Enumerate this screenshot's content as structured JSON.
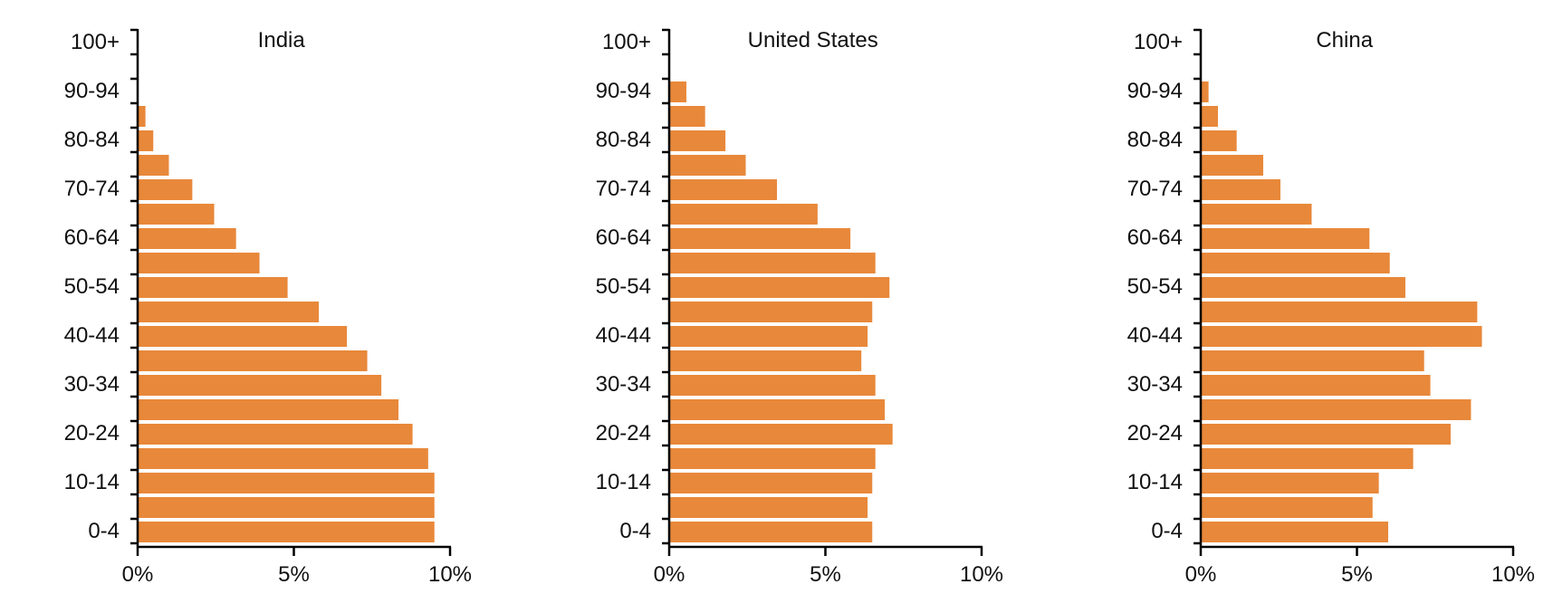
{
  "chart_data": [
    {
      "type": "bar",
      "orientation": "horizontal",
      "title": "India",
      "categories": [
        "0-4",
        "5-9",
        "10-14",
        "15-19",
        "20-24",
        "25-29",
        "30-34",
        "35-39",
        "40-44",
        "45-49",
        "50-54",
        "55-59",
        "60-64",
        "65-69",
        "70-74",
        "75-79",
        "80-84",
        "85-89",
        "90-94",
        "95-99",
        "100+"
      ],
      "values": [
        9.5,
        9.5,
        9.5,
        9.3,
        8.8,
        8.35,
        7.8,
        7.35,
        6.7,
        5.8,
        4.8,
        3.9,
        3.15,
        2.45,
        1.75,
        1.0,
        0.5,
        0.25,
        0.0,
        0.0,
        0.0
      ],
      "y_tick_labels": [
        "0-4",
        "10-14",
        "20-24",
        "30-34",
        "40-44",
        "50-54",
        "60-64",
        "70-74",
        "80-84",
        "90-94",
        "100+"
      ],
      "x_tick_labels": [
        "0%",
        "5%",
        "10%"
      ],
      "xlim": [
        0,
        10
      ],
      "color": "#E8883A",
      "grid": false
    },
    {
      "type": "bar",
      "orientation": "horizontal",
      "title": "United States",
      "categories": [
        "0-4",
        "5-9",
        "10-14",
        "15-19",
        "20-24",
        "25-29",
        "30-34",
        "35-39",
        "40-44",
        "45-49",
        "50-54",
        "55-59",
        "60-64",
        "65-69",
        "70-74",
        "75-79",
        "80-84",
        "85-89",
        "90-94",
        "95-99",
        "100+"
      ],
      "values": [
        6.5,
        6.35,
        6.5,
        6.6,
        7.15,
        6.9,
        6.6,
        6.15,
        6.35,
        6.5,
        7.05,
        6.6,
        5.8,
        4.75,
        3.45,
        2.45,
        1.8,
        1.15,
        0.55,
        0.0,
        0.0
      ],
      "y_tick_labels": [
        "0-4",
        "10-14",
        "20-24",
        "30-34",
        "40-44",
        "50-54",
        "60-64",
        "70-74",
        "80-84",
        "90-94",
        "100+"
      ],
      "x_tick_labels": [
        "0%",
        "5%",
        "10%"
      ],
      "xlim": [
        0,
        10
      ],
      "color": "#E8883A",
      "grid": false
    },
    {
      "type": "bar",
      "orientation": "horizontal",
      "title": "China",
      "categories": [
        "0-4",
        "5-9",
        "10-14",
        "15-19",
        "20-24",
        "25-29",
        "30-34",
        "35-39",
        "40-44",
        "45-49",
        "50-54",
        "55-59",
        "60-64",
        "65-69",
        "70-74",
        "75-79",
        "80-84",
        "85-89",
        "90-94",
        "95-99",
        "100+"
      ],
      "values": [
        6.0,
        5.5,
        5.7,
        6.8,
        8.0,
        8.65,
        7.35,
        7.15,
        9.0,
        8.85,
        6.55,
        6.05,
        5.4,
        3.55,
        2.55,
        2.0,
        1.15,
        0.55,
        0.25,
        0.0,
        0.0
      ],
      "y_tick_labels": [
        "0-4",
        "10-14",
        "20-24",
        "30-34",
        "40-44",
        "50-54",
        "60-64",
        "70-74",
        "80-84",
        "90-94",
        "100+"
      ],
      "x_tick_labels": [
        "0%",
        "5%",
        "10%"
      ],
      "xlim": [
        0,
        10
      ],
      "color": "#E8883A",
      "grid": false
    }
  ]
}
